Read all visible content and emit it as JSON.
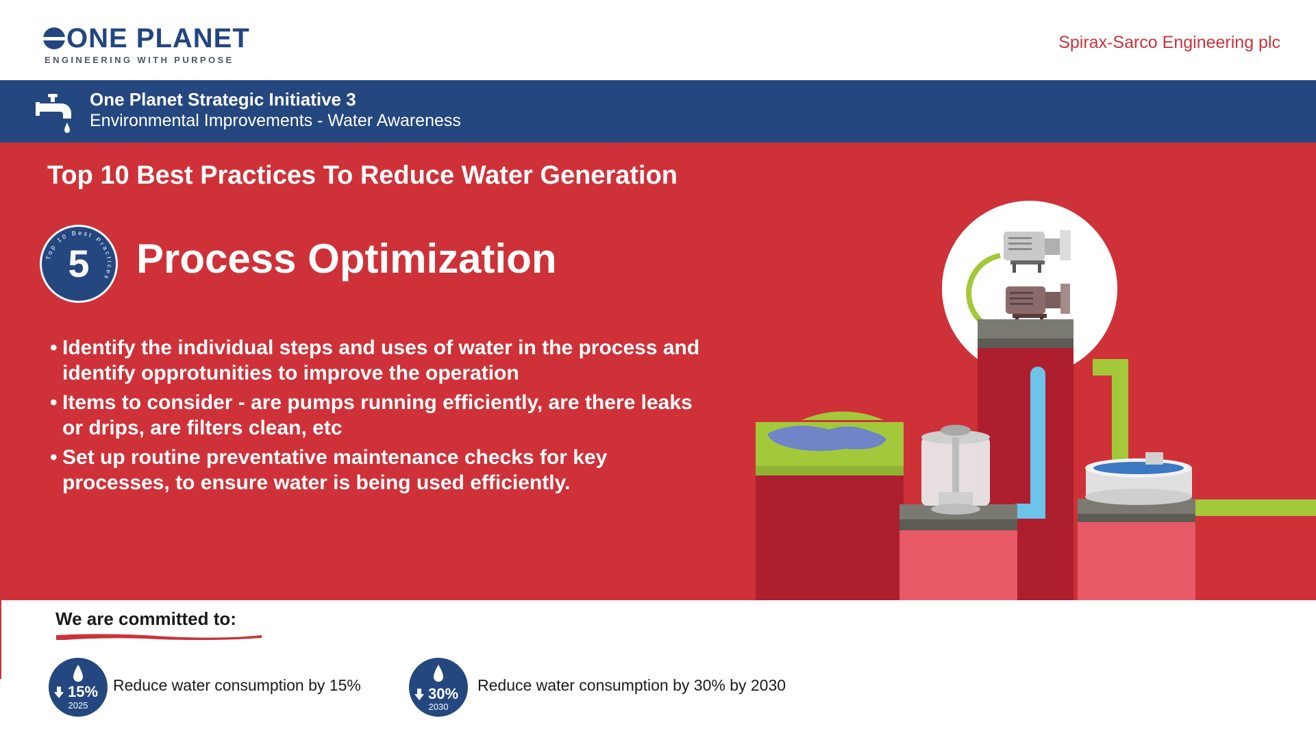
{
  "header": {
    "logo_main": "ONE PLANET",
    "logo_sub": "ENGINEERING WITH PURPOSE",
    "company": "Spirax-Sarco Engineering plc"
  },
  "banner": {
    "title": "One Planet Strategic Initiative 3",
    "subtitle": "Environmental Improvements - Water Awareness",
    "icon": "water-tap-icon"
  },
  "main": {
    "headline": "Top 10 Best Practices To Reduce Water Generation",
    "badge": {
      "number": "5",
      "ring_text": "Top 10 Best Practices"
    },
    "section_title": "Process Optimization",
    "bullets": [
      "Identify the individual steps and uses of water in the process and identify opprotunities to improve the operation",
      "Items to consider - are pumps running efficiently, are there leaks or drips, are filters clean, etc",
      "Set up routine preventative maintenance checks for key processes, to ensure water is being used efficiently."
    ]
  },
  "commitments": {
    "heading": "We are committed to:",
    "items": [
      {
        "percent": "15%",
        "year": "2025",
        "text": "Reduce water consumption by 15%"
      },
      {
        "percent": "30%",
        "year": "2030",
        "text": "Reduce water consumption by 30% by 2030"
      }
    ]
  },
  "colors": {
    "navy": "#24477f",
    "red": "#cf3138",
    "dark_red": "#ad1e2e",
    "pink": "#e85a68",
    "green": "#a3c93a",
    "pipe_blue": "#6cc4ea",
    "brand_red_text": "#c8343a"
  }
}
